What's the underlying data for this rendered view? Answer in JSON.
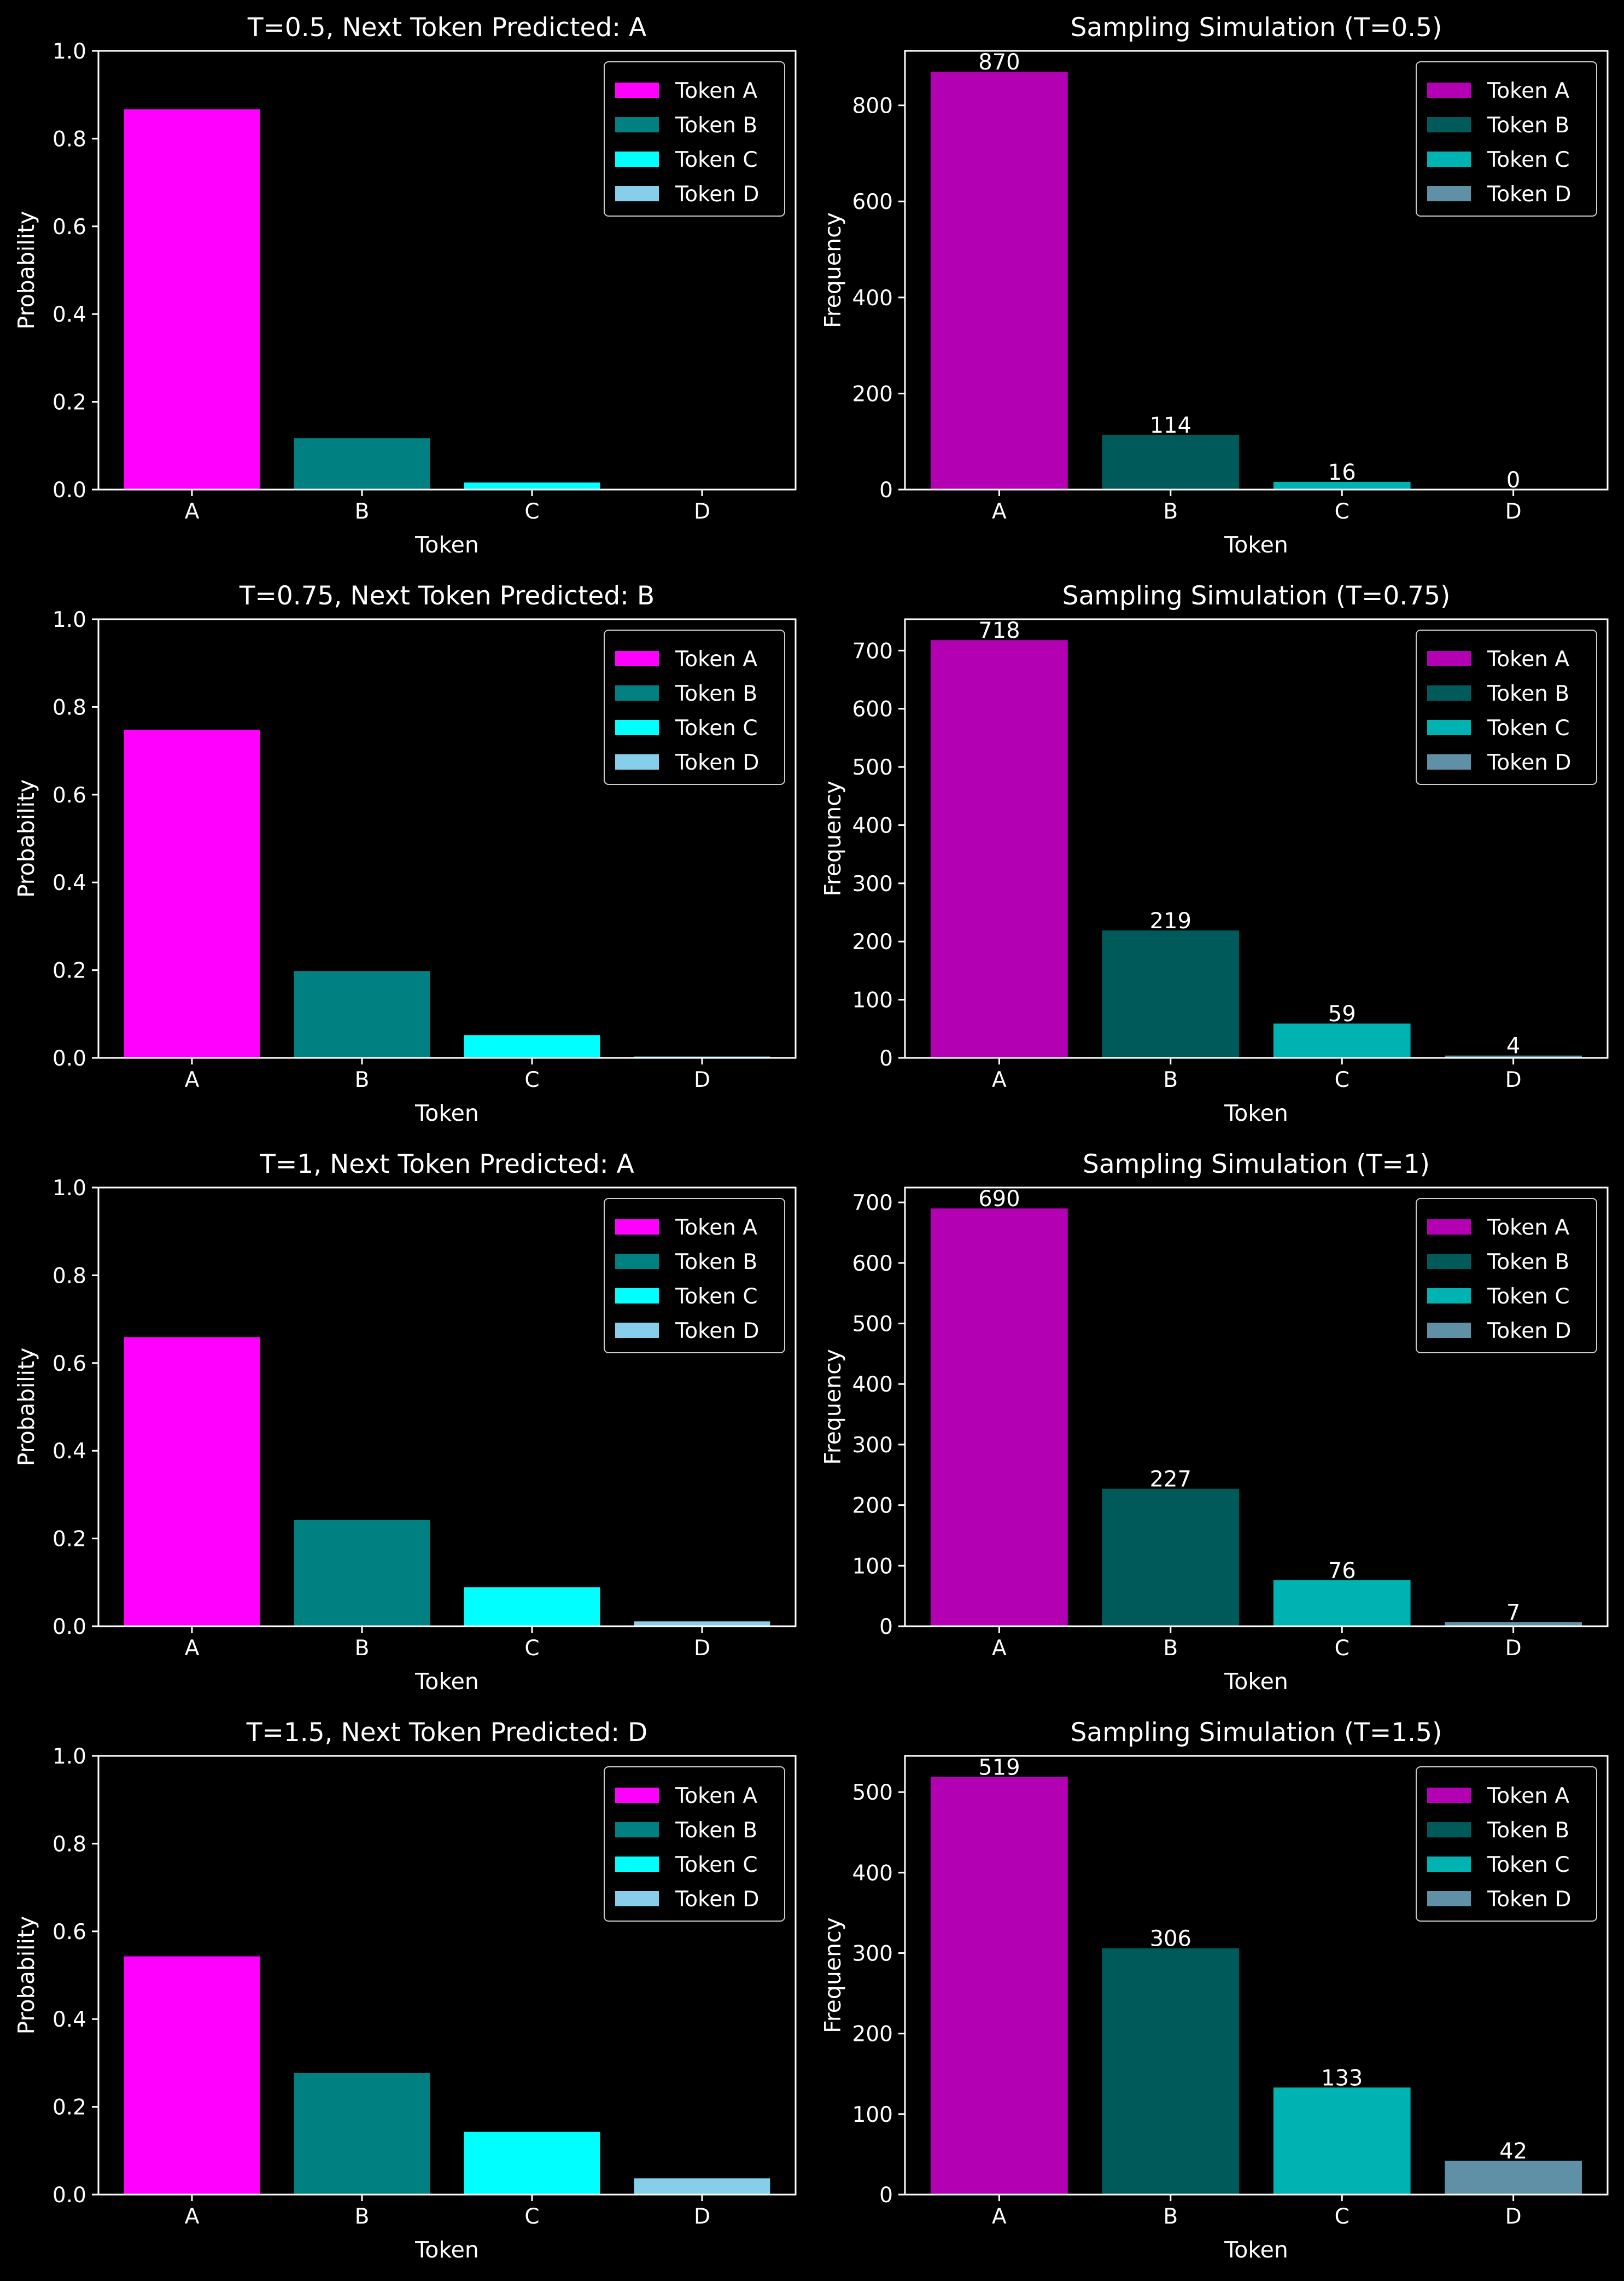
{
  "chart_data": [
    {
      "type": "bar",
      "title": "T=0.5, Next Token Predicted: A",
      "xlabel": "Token",
      "ylabel": "Probability",
      "categories": [
        "A",
        "B",
        "C",
        "D"
      ],
      "values": [
        0.867,
        0.117,
        0.016,
        0.0003
      ],
      "ylim": [
        0,
        1.0
      ],
      "yticks": [
        "0.0",
        "0.2",
        "0.4",
        "0.6",
        "0.8",
        "1.0"
      ],
      "ytick_values": [
        0,
        0.2,
        0.4,
        0.6,
        0.8,
        1.0
      ],
      "colors": [
        "#ff00ff",
        "#008080",
        "#00ffff",
        "#87ceeb"
      ],
      "legend": [
        "Token A",
        "Token B",
        "Token C",
        "Token D"
      ],
      "legend_position": "top-right",
      "data_labels": null,
      "grid": false
    },
    {
      "type": "bar",
      "title": "Sampling Simulation (T=0.5)",
      "xlabel": "Token",
      "ylabel": "Frequency",
      "categories": [
        "A",
        "B",
        "C",
        "D"
      ],
      "values": [
        870,
        114,
        16,
        0
      ],
      "ylim": [
        0,
        913.5
      ],
      "yticks": [
        "0",
        "200",
        "400",
        "600",
        "800"
      ],
      "ytick_values": [
        0,
        200,
        400,
        600,
        800
      ],
      "colors": [
        "#b300b3",
        "#005a5a",
        "#00b3b3",
        "#5f90a5"
      ],
      "legend": [
        "Token A",
        "Token B",
        "Token C",
        "Token D"
      ],
      "legend_position": "top-right",
      "data_labels": [
        "870",
        "114",
        "16",
        "0"
      ],
      "grid": false
    },
    {
      "type": "bar",
      "title": "T=0.75, Next Token Predicted: B",
      "xlabel": "Token",
      "ylabel": "Probability",
      "categories": [
        "A",
        "B",
        "C",
        "D"
      ],
      "values": [
        0.748,
        0.198,
        0.052,
        0.003
      ],
      "ylim": [
        0,
        1.0
      ],
      "yticks": [
        "0.0",
        "0.2",
        "0.4",
        "0.6",
        "0.8",
        "1.0"
      ],
      "ytick_values": [
        0,
        0.2,
        0.4,
        0.6,
        0.8,
        1.0
      ],
      "colors": [
        "#ff00ff",
        "#008080",
        "#00ffff",
        "#87ceeb"
      ],
      "legend": [
        "Token A",
        "Token B",
        "Token C",
        "Token D"
      ],
      "legend_position": "top-right",
      "data_labels": null,
      "grid": false
    },
    {
      "type": "bar",
      "title": "Sampling Simulation (T=0.75)",
      "xlabel": "Token",
      "ylabel": "Frequency",
      "categories": [
        "A",
        "B",
        "C",
        "D"
      ],
      "values": [
        718,
        219,
        59,
        4
      ],
      "ylim": [
        0,
        753.9
      ],
      "yticks": [
        "0",
        "100",
        "200",
        "300",
        "400",
        "500",
        "600",
        "700"
      ],
      "ytick_values": [
        0,
        100,
        200,
        300,
        400,
        500,
        600,
        700
      ],
      "colors": [
        "#b300b3",
        "#005a5a",
        "#00b3b3",
        "#5f90a5"
      ],
      "legend": [
        "Token A",
        "Token B",
        "Token C",
        "Token D"
      ],
      "legend_position": "top-right",
      "data_labels": [
        "718",
        "219",
        "59",
        "4"
      ],
      "grid": false
    },
    {
      "type": "bar",
      "title": "T=1, Next Token Predicted: A",
      "xlabel": "Token",
      "ylabel": "Probability",
      "categories": [
        "A",
        "B",
        "C",
        "D"
      ],
      "values": [
        0.659,
        0.242,
        0.089,
        0.011
      ],
      "ylim": [
        0,
        1.0
      ],
      "yticks": [
        "0.0",
        "0.2",
        "0.4",
        "0.6",
        "0.8",
        "1.0"
      ],
      "ytick_values": [
        0,
        0.2,
        0.4,
        0.6,
        0.8,
        1.0
      ],
      "colors": [
        "#ff00ff",
        "#008080",
        "#00ffff",
        "#87ceeb"
      ],
      "legend": [
        "Token A",
        "Token B",
        "Token C",
        "Token D"
      ],
      "legend_position": "top-right",
      "data_labels": null,
      "grid": false
    },
    {
      "type": "bar",
      "title": "Sampling Simulation (T=1)",
      "xlabel": "Token",
      "ylabel": "Frequency",
      "categories": [
        "A",
        "B",
        "C",
        "D"
      ],
      "values": [
        690,
        227,
        76,
        7
      ],
      "ylim": [
        0,
        724.5
      ],
      "yticks": [
        "0",
        "100",
        "200",
        "300",
        "400",
        "500",
        "600",
        "700"
      ],
      "ytick_values": [
        0,
        100,
        200,
        300,
        400,
        500,
        600,
        700
      ],
      "colors": [
        "#b300b3",
        "#005a5a",
        "#00b3b3",
        "#5f90a5"
      ],
      "legend": [
        "Token A",
        "Token B",
        "Token C",
        "Token D"
      ],
      "legend_position": "top-right",
      "data_labels": [
        "690",
        "227",
        "76",
        "7"
      ],
      "grid": false
    },
    {
      "type": "bar",
      "title": "T=1.5, Next Token Predicted: D",
      "xlabel": "Token",
      "ylabel": "Probability",
      "categories": [
        "A",
        "B",
        "C",
        "D"
      ],
      "values": [
        0.543,
        0.277,
        0.143,
        0.037
      ],
      "ylim": [
        0,
        1.0
      ],
      "yticks": [
        "0.0",
        "0.2",
        "0.4",
        "0.6",
        "0.8",
        "1.0"
      ],
      "ytick_values": [
        0,
        0.2,
        0.4,
        0.6,
        0.8,
        1.0
      ],
      "colors": [
        "#ff00ff",
        "#008080",
        "#00ffff",
        "#87ceeb"
      ],
      "legend": [
        "Token A",
        "Token B",
        "Token C",
        "Token D"
      ],
      "legend_position": "top-right",
      "data_labels": null,
      "grid": false
    },
    {
      "type": "bar",
      "title": "Sampling Simulation (T=1.5)",
      "xlabel": "Token",
      "ylabel": "Frequency",
      "categories": [
        "A",
        "B",
        "C",
        "D"
      ],
      "values": [
        519,
        306,
        133,
        42
      ],
      "ylim": [
        0,
        545
      ],
      "yticks": [
        "0",
        "100",
        "200",
        "300",
        "400",
        "500"
      ],
      "ytick_values": [
        0,
        100,
        200,
        300,
        400,
        500
      ],
      "colors": [
        "#b300b3",
        "#005a5a",
        "#00b3b3",
        "#5f90a5"
      ],
      "legend": [
        "Token A",
        "Token B",
        "Token C",
        "Token D"
      ],
      "legend_position": "top-right",
      "data_labels": [
        "519",
        "306",
        "133",
        "42"
      ],
      "grid": false
    }
  ]
}
